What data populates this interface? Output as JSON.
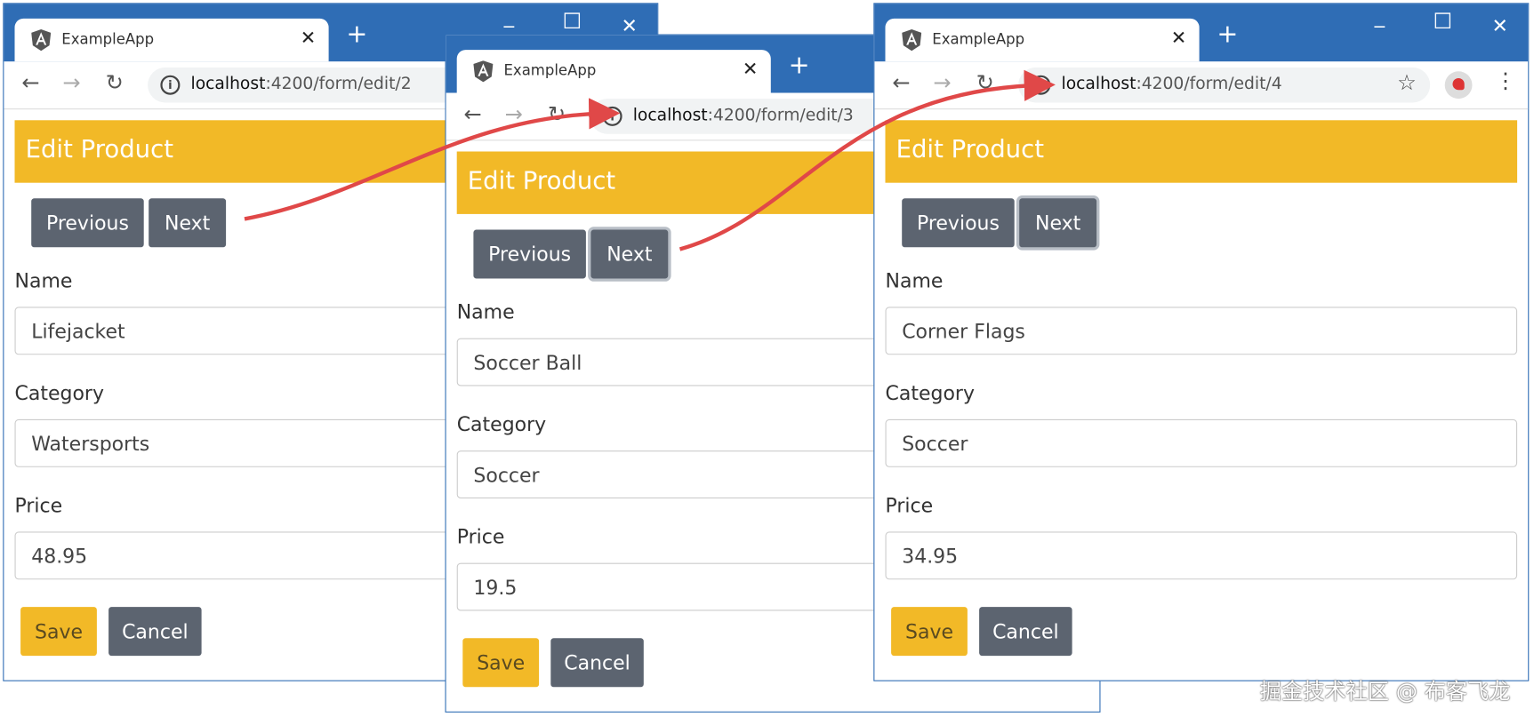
{
  "colors": {
    "titlebar": "#2f6db5",
    "header": "#f2b927",
    "button_gray": "#5c6470",
    "arrow": "#e04848"
  },
  "windows": [
    {
      "tab_title": "ExampleApp",
      "url_host": "localhost",
      "url_path": ":4200/form/edit/2",
      "header": "Edit Product",
      "prev_label": "Previous",
      "next_label": "Next",
      "name_label": "Name",
      "name_value": "Lifejacket",
      "category_label": "Category",
      "category_value": "Watersports",
      "price_label": "Price",
      "price_value": "48.95",
      "save_label": "Save",
      "cancel_label": "Cancel"
    },
    {
      "tab_title": "ExampleApp",
      "url_host": "localhost",
      "url_path": ":4200/form/edit/3",
      "header": "Edit Product",
      "prev_label": "Previous",
      "next_label": "Next",
      "name_label": "Name",
      "name_value": "Soccer Ball",
      "category_label": "Category",
      "category_value": "Soccer",
      "price_label": "Price",
      "price_value": "19.5",
      "save_label": "Save",
      "cancel_label": "Cancel"
    },
    {
      "tab_title": "ExampleApp",
      "url_host": "localhost",
      "url_path": ":4200/form/edit/4",
      "header": "Edit Product",
      "prev_label": "Previous",
      "next_label": "Next",
      "name_label": "Name",
      "name_value": "Corner Flags",
      "category_label": "Category",
      "category_value": "Soccer",
      "price_label": "Price",
      "price_value": "34.95",
      "save_label": "Save",
      "cancel_label": "Cancel"
    }
  ],
  "watermark": "掘金技术社区 @ 布客飞龙"
}
